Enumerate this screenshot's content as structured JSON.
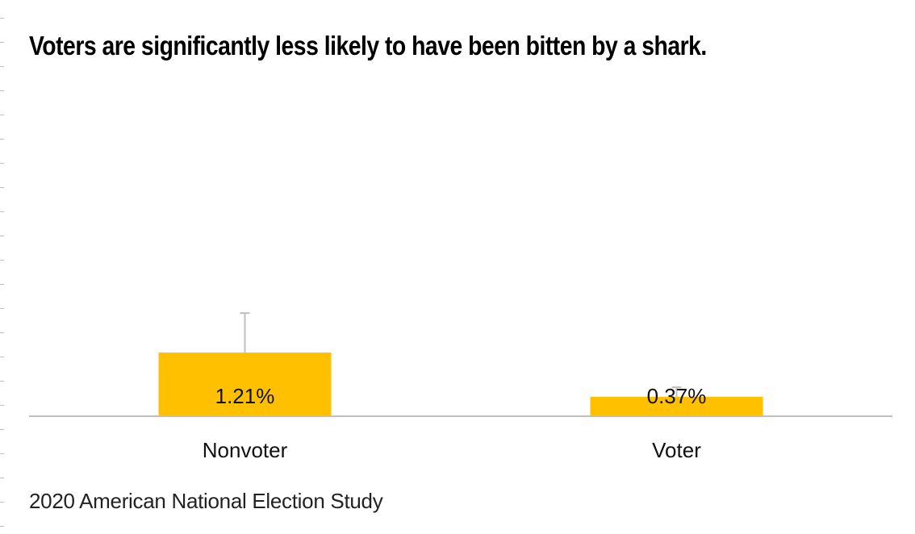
{
  "colors": {
    "bar": "#ffc000",
    "axis": "#bfbfbf",
    "error_bar": "#bfbfbf",
    "background": "#ffffff"
  },
  "chart_data": {
    "type": "bar",
    "title": "Voters are significantly less likely to have been bitten by a shark.",
    "categories": [
      "Nonvoter",
      "Voter"
    ],
    "values": [
      1.21,
      0.37
    ],
    "value_labels": [
      "1.21%",
      "0.37%"
    ],
    "error_upper": [
      1.96,
      0.55
    ],
    "unit": "%",
    "xlabel": "",
    "ylabel": "",
    "ylim": [
      0,
      6.5
    ],
    "grid": false,
    "legend": "none",
    "source": "2020 American National Election Study"
  }
}
